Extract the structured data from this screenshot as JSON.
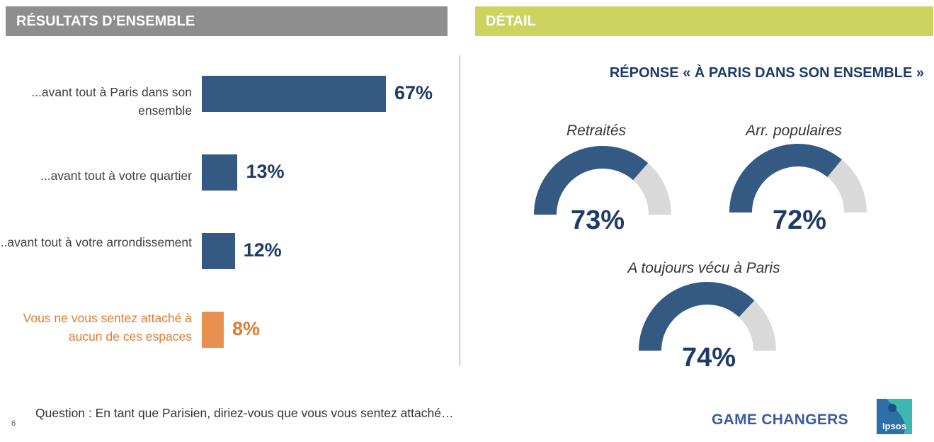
{
  "header": {
    "left_title": "RÉSULTATS D’ENSEMBLE",
    "right_title": "DÉTAIL"
  },
  "colors": {
    "bar": "#345a84",
    "highlight": "#e8904f",
    "gauge_fill": "#345a84",
    "gauge_rest": "#d9d9d9",
    "header_left_bg": "#8e8e8e",
    "header_right_bg": "#cdd35f"
  },
  "chart_data": [
    {
      "type": "bar",
      "orientation": "horizontal",
      "categories": [
        "...avant tout à Paris dans son ensemble",
        "...avant tout à votre quartier",
        "...avant tout à votre arrondissement",
        "Vous ne vous sentez attaché à aucun de ces espaces"
      ],
      "values": [
        67,
        13,
        12,
        8
      ],
      "value_labels": [
        "67%",
        "13%",
        "12%",
        "8%"
      ],
      "highlighted_index": 3,
      "xlim": [
        0,
        100
      ]
    },
    {
      "type": "gauge",
      "title": "RÉPONSE « À PARIS DANS SON ENSEMBLE »",
      "gauges": [
        {
          "name": "Retraités",
          "value": 73,
          "label": "73%"
        },
        {
          "name": "Arr. populaires",
          "value": 72,
          "label": "72%"
        },
        {
          "name": "A toujours vécu à Paris",
          "value": 74,
          "label": "74%"
        }
      ]
    }
  ],
  "footer": {
    "question": "Question : En tant que Parisien, diriez-vous que vous vous sentez attaché…",
    "page_number": "6",
    "brand": "GAME CHANGERS",
    "logo_text": "Ipsos"
  }
}
